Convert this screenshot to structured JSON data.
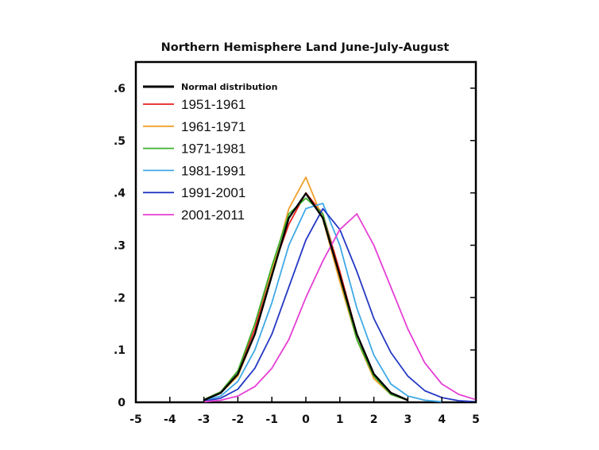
{
  "chart_data": {
    "type": "line",
    "title": "Northern Hemisphere Land June-July-August",
    "xlabel": "",
    "ylabel": "",
    "xlim": [
      -5,
      5
    ],
    "ylim": [
      0,
      0.65
    ],
    "x_ticks": [
      -5,
      -4,
      -3,
      -2,
      -1,
      0,
      1,
      2,
      3,
      4,
      5
    ],
    "x_tick_labels": [
      "-5",
      "-4",
      "-3",
      "-2",
      "-1",
      "0",
      "1",
      "2",
      "3",
      "4",
      "5"
    ],
    "y_ticks": [
      0,
      0.1,
      0.2,
      0.3,
      0.4,
      0.5,
      0.6
    ],
    "y_tick_labels": [
      "0",
      ".1",
      ".2",
      ".3",
      ".4",
      ".5",
      ".6"
    ],
    "grid": false,
    "legend_position": "top-left",
    "series": [
      {
        "name": "Normal distribution",
        "color": "#000000",
        "x": [
          -3.0,
          -2.5,
          -2.0,
          -1.5,
          -1.0,
          -0.5,
          0.0,
          0.5,
          1.0,
          1.5,
          2.0,
          2.5,
          3.0
        ],
        "values": [
          0.004,
          0.018,
          0.054,
          0.13,
          0.242,
          0.352,
          0.399,
          0.352,
          0.242,
          0.13,
          0.054,
          0.018,
          0.004
        ]
      },
      {
        "name": "1951-1961",
        "color": "#e8211e",
        "x": [
          -3.0,
          -2.5,
          -2.0,
          -1.5,
          -1.0,
          -0.5,
          0.0,
          0.5,
          1.0,
          1.5,
          2.0,
          2.5,
          3.0
        ],
        "values": [
          0.005,
          0.02,
          0.06,
          0.14,
          0.25,
          0.34,
          0.4,
          0.36,
          0.25,
          0.13,
          0.05,
          0.015,
          0.004
        ]
      },
      {
        "name": "1961-1971",
        "color": "#f0a02c",
        "x": [
          -3.0,
          -2.5,
          -2.0,
          -1.5,
          -1.0,
          -0.5,
          0.0,
          0.5,
          1.0,
          1.5,
          2.0,
          2.5,
          3.0
        ],
        "values": [
          0.004,
          0.018,
          0.05,
          0.13,
          0.25,
          0.37,
          0.43,
          0.35,
          0.23,
          0.12,
          0.045,
          0.015,
          0.004
        ]
      },
      {
        "name": "1971-1981",
        "color": "#3cb12d",
        "x": [
          -3.0,
          -2.5,
          -2.0,
          -1.5,
          -1.0,
          -0.5,
          0.0,
          0.5,
          1.0,
          1.5,
          2.0,
          2.5,
          3.0
        ],
        "values": [
          0.005,
          0.02,
          0.06,
          0.15,
          0.26,
          0.36,
          0.39,
          0.36,
          0.24,
          0.12,
          0.05,
          0.015,
          0.004
        ]
      },
      {
        "name": "1981-1991",
        "color": "#3fa9e6",
        "x": [
          -3.0,
          -2.5,
          -2.0,
          -1.5,
          -1.0,
          -0.5,
          0.0,
          0.5,
          1.0,
          1.5,
          2.0,
          2.5,
          3.0,
          3.5,
          4.0
        ],
        "values": [
          0.003,
          0.012,
          0.04,
          0.1,
          0.19,
          0.3,
          0.37,
          0.38,
          0.3,
          0.18,
          0.09,
          0.035,
          0.012,
          0.004,
          0.001
        ]
      },
      {
        "name": "1991-2001",
        "color": "#2438c4",
        "x": [
          -3.0,
          -2.5,
          -2.0,
          -1.5,
          -1.0,
          -0.5,
          0.0,
          0.5,
          1.0,
          1.5,
          2.0,
          2.5,
          3.0,
          3.5,
          4.0,
          4.5,
          5.0
        ],
        "values": [
          0.002,
          0.008,
          0.025,
          0.065,
          0.13,
          0.22,
          0.31,
          0.37,
          0.33,
          0.25,
          0.16,
          0.095,
          0.05,
          0.022,
          0.009,
          0.003,
          0.001
        ]
      },
      {
        "name": "2001-2011",
        "color": "#e63fd3",
        "x": [
          -3.0,
          -2.5,
          -2.0,
          -1.5,
          -1.0,
          -0.5,
          0.0,
          0.5,
          1.0,
          1.5,
          2.0,
          2.5,
          3.0,
          3.5,
          4.0,
          4.5,
          5.0
        ],
        "values": [
          0.001,
          0.004,
          0.012,
          0.03,
          0.065,
          0.12,
          0.2,
          0.27,
          0.33,
          0.36,
          0.3,
          0.22,
          0.14,
          0.075,
          0.035,
          0.015,
          0.005
        ]
      }
    ]
  }
}
